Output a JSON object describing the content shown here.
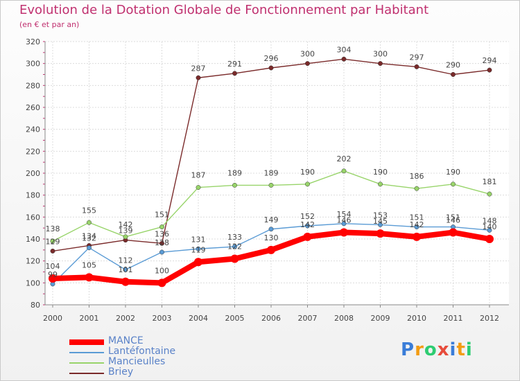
{
  "title": "Evolution de la Dotation Globale de Fonctionnement par Habitant",
  "subtitle": "(en € et par an)",
  "logo": {
    "text": "Proxiti",
    "colors": [
      "#3a7dd8",
      "#f39c12",
      "#2ecc71",
      "#e74c3c",
      "#3a7dd8",
      "#f39c12",
      "#2ecc71"
    ]
  },
  "chart_data": {
    "type": "line",
    "title": "Evolution de la Dotation Globale de Fonctionnement par Habitant",
    "ylabel": "(en € et par an)",
    "xlabel": "",
    "categories": [
      "2000",
      "2001",
      "2002",
      "2003",
      "2004",
      "2005",
      "2006",
      "2007",
      "2008",
      "2009",
      "2010",
      "2011",
      "2012"
    ],
    "ylim": [
      80,
      320
    ],
    "yticks": [
      80,
      100,
      120,
      140,
      160,
      180,
      200,
      220,
      240,
      260,
      280,
      300,
      320
    ],
    "grid": true,
    "legend_position": "bottom-left",
    "series": [
      {
        "name": "MANCE",
        "color": "#ff0000",
        "values": [
          104,
          105,
          101,
          100,
          119,
          122,
          130,
          142,
          146,
          145,
          142,
          146,
          140
        ],
        "labels": [
          "104",
          "105",
          "101",
          "100",
          "119",
          "122",
          "130",
          "142",
          "146",
          "145",
          "142",
          "146",
          "140"
        ]
      },
      {
        "name": "Lantéfontaine",
        "color": "#5a9bd5",
        "values": [
          99,
          132,
          112,
          128,
          131,
          133,
          149,
          152,
          154,
          153,
          151,
          151,
          148
        ],
        "labels": [
          "99",
          "132",
          "112",
          "128",
          "131",
          "133",
          "149",
          "152",
          "154",
          "153",
          "151",
          "151",
          "148"
        ]
      },
      {
        "name": "Mancieulles",
        "color": "#98d46a",
        "values": [
          138,
          155,
          142,
          151,
          187,
          189,
          189,
          190,
          202,
          190,
          186,
          190,
          181
        ],
        "labels": [
          "138",
          "155",
          "142",
          "151",
          "187",
          "189",
          "189",
          "190",
          "202",
          "190",
          "186",
          "190",
          "181"
        ]
      },
      {
        "name": "Briey",
        "color": "#7a2a2a",
        "values": [
          129,
          134,
          139,
          136,
          287,
          291,
          296,
          300,
          304,
          300,
          297,
          290,
          294
        ],
        "labels": [
          "129",
          "134",
          "139",
          "136",
          "287",
          "291",
          "296",
          "300",
          "304",
          "300",
          "297",
          "290",
          "294"
        ]
      }
    ]
  }
}
